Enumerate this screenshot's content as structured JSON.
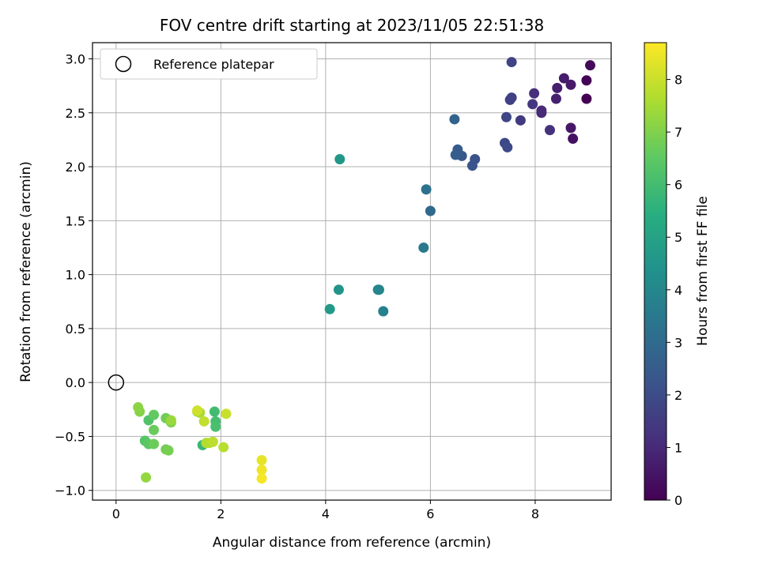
{
  "chart_data": {
    "type": "scatter",
    "title": "FOV centre drift starting at 2023/11/05 22:51:38",
    "xlabel": "Angular distance from reference (arcmin)",
    "ylabel": "Rotation from reference (arcmin)",
    "xlim": [
      -0.45,
      9.45
    ],
    "ylim": [
      -1.09,
      3.15
    ],
    "xticks": [
      0,
      2,
      4,
      6,
      8
    ],
    "yticks": [
      -1.0,
      -0.5,
      0.0,
      0.5,
      1.0,
      1.5,
      2.0,
      2.5,
      3.0
    ],
    "ytick_labels": [
      "−1.0",
      "−0.5",
      "0.0",
      "0.5",
      "1.0",
      "1.5",
      "2.0",
      "2.5",
      "3.0"
    ],
    "grid": true,
    "legend": {
      "placement": "top-left",
      "entries": [
        "Reference platepar"
      ]
    },
    "reference_point": {
      "x": 0.0,
      "y": 0.0
    },
    "colorbar": {
      "label": "Hours from first FF file",
      "colormap": "viridis",
      "range": [
        0,
        8.7
      ],
      "ticks": [
        0,
        1,
        2,
        3,
        4,
        5,
        6,
        7,
        8
      ]
    },
    "points": [
      {
        "x": 8.98,
        "y": 2.63,
        "h": 0.0
      },
      {
        "x": 8.98,
        "y": 2.8,
        "h": 0.1
      },
      {
        "x": 9.05,
        "y": 2.94,
        "h": 0.2
      },
      {
        "x": 8.72,
        "y": 2.26,
        "h": 0.4
      },
      {
        "x": 8.68,
        "y": 2.36,
        "h": 0.55
      },
      {
        "x": 8.68,
        "y": 2.76,
        "h": 0.6
      },
      {
        "x": 8.55,
        "y": 2.82,
        "h": 0.7
      },
      {
        "x": 8.42,
        "y": 2.73,
        "h": 0.75
      },
      {
        "x": 8.4,
        "y": 2.63,
        "h": 0.8
      },
      {
        "x": 8.12,
        "y": 2.5,
        "h": 1.0
      },
      {
        "x": 8.12,
        "y": 2.52,
        "h": 1.05
      },
      {
        "x": 7.98,
        "y": 2.68,
        "h": 1.2
      },
      {
        "x": 8.28,
        "y": 2.34,
        "h": 1.25
      },
      {
        "x": 7.95,
        "y": 2.58,
        "h": 1.4
      },
      {
        "x": 7.72,
        "y": 2.43,
        "h": 1.5
      },
      {
        "x": 7.55,
        "y": 2.64,
        "h": 1.65
      },
      {
        "x": 7.52,
        "y": 2.62,
        "h": 1.7
      },
      {
        "x": 7.55,
        "y": 2.97,
        "h": 1.75
      },
      {
        "x": 7.45,
        "y": 2.46,
        "h": 1.85
      },
      {
        "x": 7.42,
        "y": 2.22,
        "h": 1.95
      },
      {
        "x": 7.47,
        "y": 2.18,
        "h": 2.0
      },
      {
        "x": 6.85,
        "y": 2.07,
        "h": 2.2
      },
      {
        "x": 6.8,
        "y": 2.01,
        "h": 2.3
      },
      {
        "x": 6.6,
        "y": 2.1,
        "h": 2.4
      },
      {
        "x": 6.52,
        "y": 2.16,
        "h": 2.5
      },
      {
        "x": 6.48,
        "y": 2.11,
        "h": 2.6
      },
      {
        "x": 6.46,
        "y": 2.44,
        "h": 2.8
      },
      {
        "x": 6.0,
        "y": 1.59,
        "h": 3.0
      },
      {
        "x": 5.92,
        "y": 1.79,
        "h": 3.3
      },
      {
        "x": 5.87,
        "y": 1.25,
        "h": 3.5
      },
      {
        "x": 5.1,
        "y": 0.66,
        "h": 3.8
      },
      {
        "x": 5.0,
        "y": 0.86,
        "h": 3.9
      },
      {
        "x": 5.02,
        "y": 0.86,
        "h": 4.0
      },
      {
        "x": 4.25,
        "y": 0.86,
        "h": 4.5
      },
      {
        "x": 4.27,
        "y": 2.07,
        "h": 4.6
      },
      {
        "x": 4.08,
        "y": 0.68,
        "h": 4.7
      },
      {
        "x": 1.65,
        "y": -0.58,
        "h": 5.8
      },
      {
        "x": 1.88,
        "y": -0.27,
        "h": 6.0
      },
      {
        "x": 1.9,
        "y": -0.36,
        "h": 6.1
      },
      {
        "x": 1.9,
        "y": -0.41,
        "h": 6.15
      },
      {
        "x": 0.62,
        "y": -0.35,
        "h": 6.3
      },
      {
        "x": 0.55,
        "y": -0.54,
        "h": 6.4
      },
      {
        "x": 0.62,
        "y": -0.57,
        "h": 6.5
      },
      {
        "x": 0.72,
        "y": -0.3,
        "h": 6.6
      },
      {
        "x": 0.72,
        "y": -0.44,
        "h": 6.7
      },
      {
        "x": 0.72,
        "y": -0.57,
        "h": 6.75
      },
      {
        "x": 0.95,
        "y": -0.33,
        "h": 6.8
      },
      {
        "x": 0.95,
        "y": -0.62,
        "h": 6.85
      },
      {
        "x": 1.0,
        "y": -0.63,
        "h": 6.9
      },
      {
        "x": 1.05,
        "y": -0.37,
        "h": 7.0
      },
      {
        "x": 0.45,
        "y": -0.27,
        "h": 7.1
      },
      {
        "x": 0.42,
        "y": -0.23,
        "h": 7.2
      },
      {
        "x": 0.57,
        "y": -0.88,
        "h": 7.3
      },
      {
        "x": 1.05,
        "y": -0.35,
        "h": 7.4
      },
      {
        "x": 1.55,
        "y": -0.27,
        "h": 7.5
      },
      {
        "x": 1.6,
        "y": -0.28,
        "h": 7.55
      },
      {
        "x": 1.72,
        "y": -0.56,
        "h": 7.7
      },
      {
        "x": 1.78,
        "y": -0.56,
        "h": 7.75
      },
      {
        "x": 2.05,
        "y": -0.6,
        "h": 7.8
      },
      {
        "x": 1.85,
        "y": -0.55,
        "h": 7.85
      },
      {
        "x": 1.68,
        "y": -0.36,
        "h": 7.9
      },
      {
        "x": 2.1,
        "y": -0.29,
        "h": 8.0
      },
      {
        "x": 1.55,
        "y": -0.26,
        "h": 8.1
      },
      {
        "x": 2.78,
        "y": -0.72,
        "h": 8.4
      },
      {
        "x": 2.78,
        "y": -0.81,
        "h": 8.5
      },
      {
        "x": 2.78,
        "y": -0.89,
        "h": 8.6
      }
    ]
  }
}
